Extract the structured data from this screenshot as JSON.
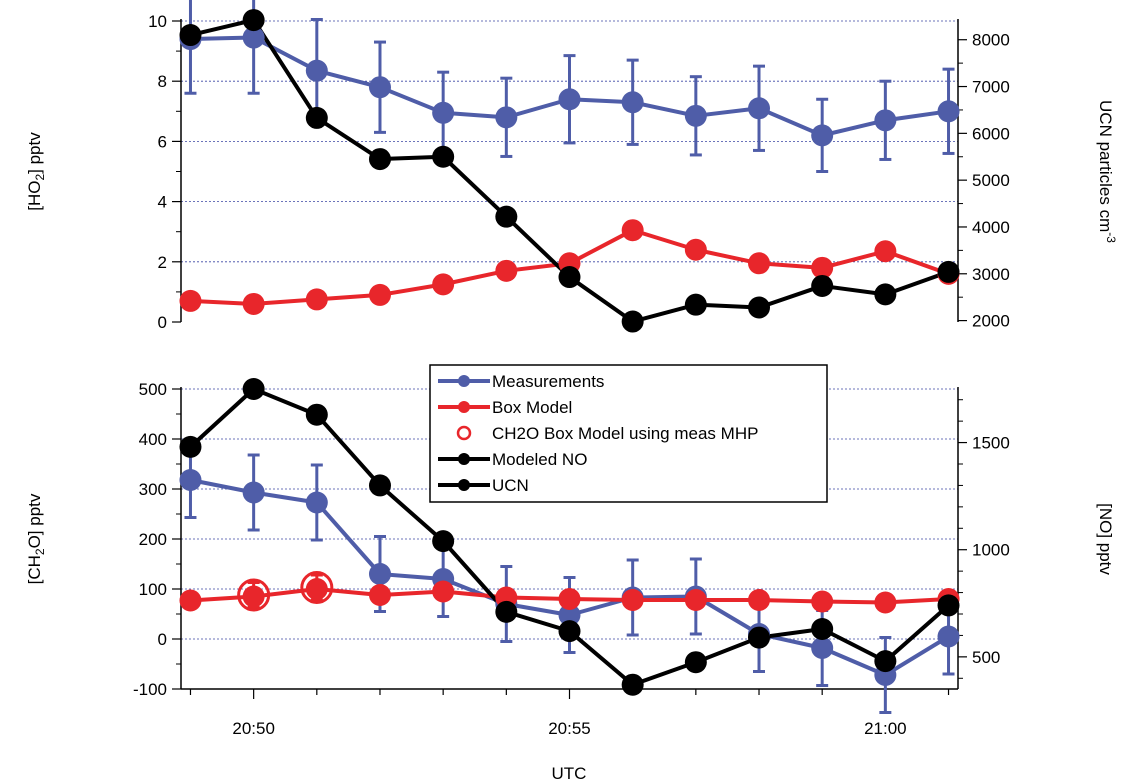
{
  "chart_data": [
    {
      "type": "line",
      "x_axis": {
        "label": "UTC",
        "tick_labels": [
          "20:50",
          "20:55",
          "21:00"
        ],
        "tick_minutes": [
          50,
          55,
          60
        ],
        "range_minutes": [
          48.85,
          61.15
        ]
      },
      "left_axis": {
        "label_prefix": "[HO",
        "label_sub": "2",
        "label_suffix": "] pptv",
        "ylim": [
          0,
          10
        ],
        "ticks": [
          0,
          2,
          4,
          6,
          8,
          10
        ]
      },
      "right_axis": {
        "label_prefix": "UCN   particles cm",
        "label_sup": "-3",
        "ylim": [
          1970,
          8400
        ],
        "ticks": [
          2000,
          3000,
          4000,
          5000,
          6000,
          7000,
          8000
        ]
      },
      "grid": true,
      "x_minutes": [
        49,
        50,
        51,
        52,
        53,
        54,
        55,
        56,
        57,
        58,
        59,
        60,
        61
      ],
      "series": [
        {
          "name": "Measurements",
          "axis": "left",
          "color": "#4f5da8",
          "values": [
            9.4,
            9.45,
            8.35,
            7.8,
            6.95,
            6.8,
            7.4,
            7.3,
            6.85,
            7.1,
            6.2,
            6.7,
            7.0
          ],
          "error": [
            1.8,
            1.85,
            1.7,
            1.5,
            1.35,
            1.3,
            1.45,
            1.4,
            1.3,
            1.4,
            1.2,
            1.3,
            1.4
          ]
        },
        {
          "name": "Box Model",
          "axis": "left",
          "color": "#e8262b",
          "values": [
            0.7,
            0.6,
            0.75,
            0.9,
            1.25,
            1.7,
            1.95,
            3.05,
            2.4,
            1.95,
            1.8,
            2.35,
            1.6
          ]
        },
        {
          "name": "UCN",
          "axis": "right",
          "color": "#000000",
          "values": [
            8100,
            8420,
            6330,
            5450,
            5500,
            4220,
            2930,
            1980,
            2340,
            2280,
            2740,
            2560,
            3040
          ]
        }
      ]
    },
    {
      "type": "line",
      "x_axis": {
        "label": "UTC",
        "tick_labels": [
          "20:50",
          "20:55",
          "21:00"
        ],
        "tick_minutes": [
          50,
          55,
          60
        ],
        "range_minutes": [
          48.85,
          61.15
        ]
      },
      "left_axis": {
        "label_prefix": "[CH",
        "label_sub": "2",
        "label_suffix": "O] pptv",
        "ylim": [
          -100,
          500
        ],
        "ticks": [
          -100,
          0,
          100,
          200,
          300,
          400,
          500
        ]
      },
      "right_axis": {
        "label": "[NO] pptv",
        "ylim": [
          350,
          1750
        ],
        "ticks": [
          500,
          1000,
          1500
        ]
      },
      "grid": true,
      "x_minutes": [
        49,
        50,
        51,
        52,
        53,
        54,
        55,
        56,
        57,
        58,
        59,
        60,
        61
      ],
      "series": [
        {
          "name": "Measurements",
          "axis": "left",
          "color": "#4f5da8",
          "values": [
            318,
            293,
            273,
            130,
            120,
            70,
            48,
            83,
            85,
            10,
            -18,
            -72,
            5
          ],
          "error": [
            75,
            75,
            75,
            75,
            75,
            75,
            75,
            75,
            75,
            75,
            75,
            75,
            75
          ]
        },
        {
          "name": "Box Model",
          "axis": "left",
          "color": "#e8262b",
          "values": [
            77,
            85,
            100,
            88,
            95,
            83,
            80,
            78,
            78,
            78,
            75,
            73,
            80
          ],
          "error": [
            12,
            12,
            12,
            12,
            12,
            12,
            12,
            12,
            12,
            12,
            12,
            12,
            12
          ]
        },
        {
          "name": "CH2O Box Model using meas MHP",
          "axis": "left",
          "color": "#e8262b",
          "marker": "open-circle",
          "x_minutes": [
            50,
            51
          ],
          "values": [
            88,
            103
          ],
          "error": [
            25,
            25
          ]
        },
        {
          "name": "Modeled NO",
          "axis": "right",
          "color": "#000000",
          "values": [
            1480,
            1750,
            1630,
            1300,
            1040,
            710,
            620,
            370,
            475,
            590,
            630,
            480,
            740
          ]
        }
      ]
    }
  ],
  "legend": {
    "position": "top-center",
    "entries": [
      {
        "label": "Measurements",
        "color": "#4f5da8",
        "marker": "filled"
      },
      {
        "label": "Box Model",
        "color": "#e8262b",
        "marker": "filled"
      },
      {
        "label": "CH2O Box Model using meas MHP",
        "color": "#e8262b",
        "marker": "open"
      },
      {
        "label": "Modeled NO",
        "color": "#000000",
        "marker": "filled"
      },
      {
        "label": "UCN",
        "color": "#000000",
        "marker": "filled"
      }
    ]
  }
}
